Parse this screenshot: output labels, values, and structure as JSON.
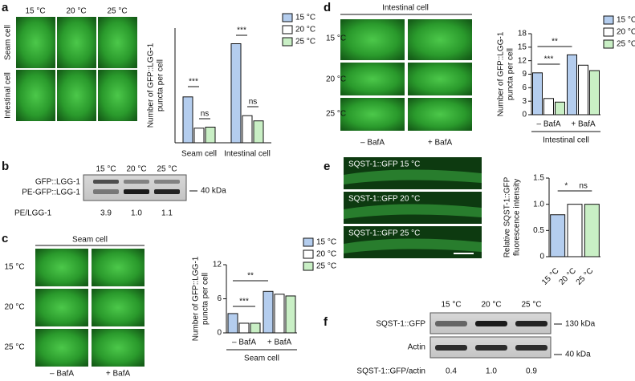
{
  "panel_letters": [
    "a",
    "b",
    "c",
    "d",
    "e",
    "f"
  ],
  "panel_a": {
    "temperatures": [
      "15 °C",
      "20 °C",
      "25 °C"
    ],
    "rows": [
      "Seam cell",
      "Intestinal cell"
    ]
  },
  "panel_b": {
    "temperatures": [
      "15 °C",
      "20 °C",
      "25 °C"
    ],
    "bands": [
      "GFP::LGG-1",
      "PE-GFP::LGG-1"
    ],
    "marker": "40 kDa",
    "ratio_label": "PE/LGG-1",
    "ratios": [
      "3.9",
      "1.0",
      "1.1"
    ]
  },
  "panel_c": {
    "title": "Seam cell",
    "rows": [
      "15 °C",
      "20 °C",
      "25 °C"
    ],
    "columns": [
      "– BafA",
      "+ BafA"
    ]
  },
  "panel_d": {
    "title": "Intestinal cell",
    "rows": [
      "15 °C",
      "20 °C",
      "25 °C"
    ],
    "columns": [
      "– BafA",
      "+ BafA"
    ]
  },
  "panel_e": {
    "labels": [
      "SQST-1::GFP 15 °C",
      "SQST-1::GFP 20 °C",
      "SQST-1::GFP 25 °C"
    ]
  },
  "panel_f": {
    "temperatures": [
      "15 °C",
      "20 °C",
      "25 °C"
    ],
    "bands": [
      "SQST-1::GFP",
      "Actin"
    ],
    "markers": [
      "130 kDa",
      "40 kDa"
    ],
    "ratio_label": "SQST-1::GFP/actin",
    "ratios": [
      "0.4",
      "1.0",
      "0.9"
    ]
  },
  "chart_data": [
    {
      "type": "bar",
      "categories": [
        "Seam cell",
        "Intestinal cell"
      ],
      "ylabel": [
        "Number of GFP::LGG-1",
        "puncta per cell"
      ],
      "ylim": [
        0,
        11
      ],
      "legend": true,
      "series": [
        {
          "name": "15 °C",
          "color": "#b4cdee",
          "values": [
            4.4,
            9.5
          ]
        },
        {
          "name": "20 °C",
          "color": "#ffffff",
          "values": [
            1.4,
            2.6
          ]
        },
        {
          "name": "25 °C",
          "color": "#c9efc5",
          "values": [
            1.5,
            2.1
          ]
        }
      ],
      "annotations": [
        "***",
        "ns",
        "***",
        "ns"
      ]
    },
    {
      "type": "bar",
      "categories": [
        "– BafA",
        "+ BafA"
      ],
      "group_label": "Seam cell",
      "ylabel": [
        "Number of GFP::LGG-1",
        "puncta per cell"
      ],
      "ylim": [
        0,
        12
      ],
      "yticks": [
        0,
        6,
        12
      ],
      "legend": true,
      "series": [
        {
          "name": "15 °C",
          "color": "#b4cdee",
          "values": [
            3.4,
            7.3
          ]
        },
        {
          "name": "20 °C",
          "color": "#ffffff",
          "values": [
            1.7,
            6.8
          ]
        },
        {
          "name": "25 °C",
          "color": "#c9efc5",
          "values": [
            1.7,
            6.5
          ]
        }
      ],
      "annotations": [
        "***",
        "**"
      ]
    },
    {
      "type": "bar",
      "categories": [
        "– BafA",
        "+ BafA"
      ],
      "group_label": "Intestinal cell",
      "ylabel": [
        "Number of GFP::LGG-1",
        "puncta per cell"
      ],
      "ylim": [
        0,
        18
      ],
      "yticks": [
        0,
        3,
        6,
        9,
        12,
        15,
        18
      ],
      "legend": true,
      "series": [
        {
          "name": "15 °C",
          "color": "#b4cdee",
          "values": [
            9.3,
            13.3
          ]
        },
        {
          "name": "20 °C",
          "color": "#ffffff",
          "values": [
            3.6,
            11.0
          ]
        },
        {
          "name": "25 °C",
          "color": "#c9efc5",
          "values": [
            2.8,
            9.8
          ]
        }
      ],
      "annotations": [
        "***",
        "**"
      ]
    },
    {
      "type": "bar",
      "categories": [
        "15 °C",
        "20 °C",
        "25 °C"
      ],
      "values": [
        0.8,
        1.0,
        1.0
      ],
      "colors": [
        "#b4cdee",
        "#ffffff",
        "#c9efc5"
      ],
      "ylabel": [
        "Relative SQST-1::GFP",
        "fluorescence intensity"
      ],
      "ylim": [
        0,
        1.5
      ],
      "yticks": [
        0,
        0.5,
        {
          "value": 1,
          "label": "1.0"
        },
        1.5
      ],
      "annotations": [
        "*",
        "ns"
      ]
    }
  ]
}
